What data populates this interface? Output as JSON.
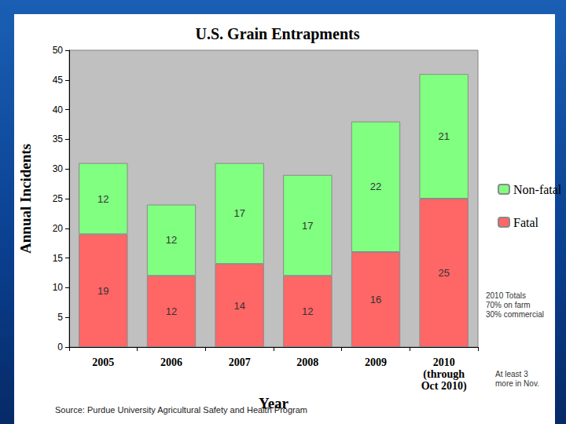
{
  "chart_data": {
    "type": "bar",
    "title": "U.S. Grain Entrapments",
    "x_label": "Year",
    "y_label": "Annual Incidents",
    "categories": [
      "2005",
      "2006",
      "2007",
      "2008",
      "2009",
      "2010\n(through\nOct 2010)"
    ],
    "series": [
      {
        "name": "Fatal",
        "color": "#ff6666",
        "values": [
          19,
          12,
          14,
          12,
          16,
          25
        ]
      },
      {
        "name": "Non-fatal",
        "color": "#80ff80",
        "values": [
          12,
          12,
          17,
          17,
          22,
          21
        ]
      }
    ],
    "ylim": [
      0,
      50
    ],
    "yticks": [
      0,
      5,
      10,
      15,
      20,
      25,
      30,
      35,
      40,
      45,
      50
    ],
    "grid": false,
    "stacked": true,
    "data_labels": true,
    "legend": "right",
    "annotations": [
      "2010 Totals\n70% on farm\n30% commercial",
      "At least 3\nmore in Nov."
    ],
    "source": "Source: Purdue University Agricultural Safety and Health Program"
  }
}
